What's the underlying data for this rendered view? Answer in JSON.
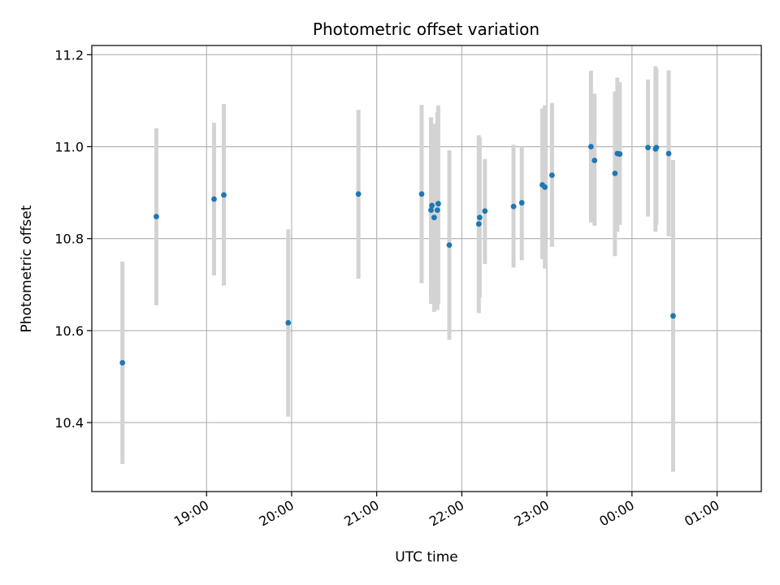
{
  "chart_data": {
    "type": "scatter",
    "title": "Photometric offset variation",
    "xlabel": "UTC time",
    "ylabel": "Photometric offset",
    "grid": true,
    "xlim": [
      -20.9,
      451.2
    ],
    "ylim": [
      10.25,
      11.22
    ],
    "x_unit": "minutes after 18:00",
    "x_ticks": [
      {
        "value": 60,
        "label": "19:00"
      },
      {
        "value": 120,
        "label": "20:00"
      },
      {
        "value": 180,
        "label": "21:00"
      },
      {
        "value": 240,
        "label": "22:00"
      },
      {
        "value": 300,
        "label": "23:00"
      },
      {
        "value": 360,
        "label": "00:00"
      },
      {
        "value": 420,
        "label": "01:00"
      }
    ],
    "y_ticks": [
      {
        "value": 10.4,
        "label": "10.4"
      },
      {
        "value": 10.6,
        "label": "10.6"
      },
      {
        "value": 10.8,
        "label": "10.8"
      },
      {
        "value": 11.0,
        "label": "11.0"
      },
      {
        "value": 11.2,
        "label": "11.2"
      }
    ],
    "colors": {
      "point": "#1f77b4",
      "error_bar": "#d3d3d3",
      "grid": "#b0b0b0",
      "axis": "#000000"
    },
    "points": [
      {
        "x": 0.7,
        "y": 10.53,
        "ylow": 10.31,
        "yhigh": 10.75
      },
      {
        "x": 24.6,
        "y": 10.848,
        "ylow": 10.655,
        "yhigh": 11.04
      },
      {
        "x": 65.3,
        "y": 10.886,
        "ylow": 10.72,
        "yhigh": 11.052
      },
      {
        "x": 72.2,
        "y": 10.895,
        "ylow": 10.698,
        "yhigh": 11.093
      },
      {
        "x": 117.6,
        "y": 10.617,
        "ylow": 10.413,
        "yhigh": 10.82
      },
      {
        "x": 167.1,
        "y": 10.897,
        "ylow": 10.713,
        "yhigh": 11.08
      },
      {
        "x": 211.7,
        "y": 10.897,
        "ylow": 10.703,
        "yhigh": 11.091
      },
      {
        "x": 218.3,
        "y": 10.862,
        "ylow": 10.658,
        "yhigh": 11.064
      },
      {
        "x": 218.9,
        "y": 10.872,
        "ylow": 10.7,
        "yhigh": 11.04
      },
      {
        "x": 220.5,
        "y": 10.846,
        "ylow": 10.641,
        "yhigh": 11.05
      },
      {
        "x": 222.8,
        "y": 10.862,
        "ylow": 10.645,
        "yhigh": 11.075
      },
      {
        "x": 223.4,
        "y": 10.876,
        "ylow": 10.658,
        "yhigh": 11.09
      },
      {
        "x": 231.2,
        "y": 10.786,
        "ylow": 10.58,
        "yhigh": 10.992
      },
      {
        "x": 252.0,
        "y": 10.832,
        "ylow": 10.638,
        "yhigh": 11.025
      },
      {
        "x": 252.6,
        "y": 10.846,
        "ylow": 10.672,
        "yhigh": 11.02
      },
      {
        "x": 256.3,
        "y": 10.86,
        "ylow": 10.745,
        "yhigh": 10.973
      },
      {
        "x": 276.5,
        "y": 10.87,
        "ylow": 10.737,
        "yhigh": 11.004
      },
      {
        "x": 282.3,
        "y": 10.878,
        "ylow": 10.753,
        "yhigh": 11.0
      },
      {
        "x": 296.8,
        "y": 10.917,
        "ylow": 10.755,
        "yhigh": 11.083
      },
      {
        "x": 298.6,
        "y": 10.912,
        "ylow": 10.735,
        "yhigh": 11.09
      },
      {
        "x": 303.6,
        "y": 10.938,
        "ylow": 10.782,
        "yhigh": 11.095
      },
      {
        "x": 331.1,
        "y": 11.0,
        "ylow": 10.835,
        "yhigh": 11.165
      },
      {
        "x": 333.6,
        "y": 10.97,
        "ylow": 10.828,
        "yhigh": 11.115
      },
      {
        "x": 348.0,
        "y": 10.942,
        "ylow": 10.762,
        "yhigh": 11.12
      },
      {
        "x": 349.7,
        "y": 10.985,
        "ylow": 10.815,
        "yhigh": 11.15
      },
      {
        "x": 351.4,
        "y": 10.984,
        "ylow": 10.83,
        "yhigh": 11.14
      },
      {
        "x": 371.3,
        "y": 10.998,
        "ylow": 10.848,
        "yhigh": 11.146
      },
      {
        "x": 376.6,
        "y": 10.995,
        "ylow": 10.815,
        "yhigh": 11.175
      },
      {
        "x": 377.2,
        "y": 10.998,
        "ylow": 10.83,
        "yhigh": 11.17
      },
      {
        "x": 385.9,
        "y": 10.985,
        "ylow": 10.805,
        "yhigh": 11.166
      },
      {
        "x": 389.0,
        "y": 10.632,
        "ylow": 10.293,
        "yhigh": 10.971
      }
    ]
  }
}
